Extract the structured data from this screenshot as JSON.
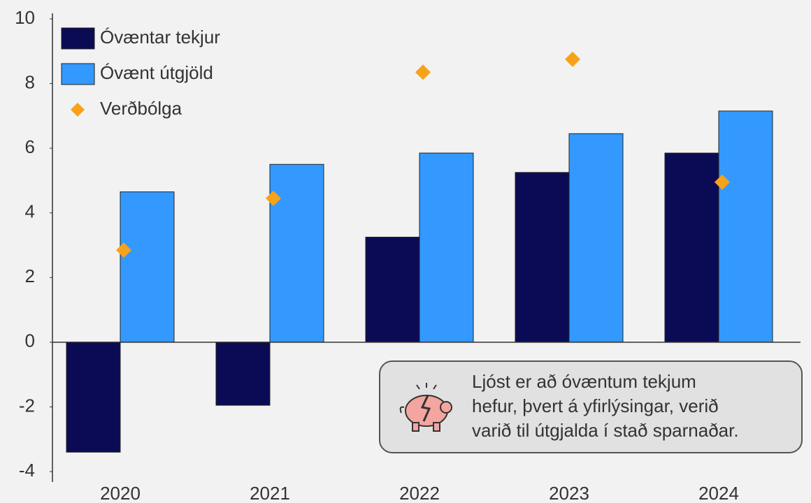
{
  "chart_data": {
    "type": "bar",
    "categories": [
      "2020",
      "2021",
      "2022",
      "2023",
      "2024"
    ],
    "series": [
      {
        "name": "Óvæntar tekjur",
        "color": "#0b0b55",
        "values": [
          -3.4,
          -1.95,
          3.25,
          5.25,
          5.85
        ]
      },
      {
        "name": "Óvænt útgjöld",
        "color": "#3399ff",
        "values": [
          4.65,
          5.5,
          5.85,
          6.45,
          7.15
        ]
      },
      {
        "name": "Verðbólga",
        "color": "#f7a21b",
        "type": "scatter",
        "values": [
          2.85,
          4.45,
          8.35,
          8.75,
          4.95
        ]
      }
    ],
    "ylim": [
      -4,
      10
    ],
    "yticks": [
      -4,
      -2,
      0,
      2,
      4,
      6,
      8,
      10
    ],
    "grid": false,
    "legend": "upper left",
    "annotation": [
      "Ljóst er að óvæntum tekjum",
      "hefur, þvert á yfirlýsingar, verið",
      "varið til útgjalda í stað sparnaðar."
    ]
  }
}
